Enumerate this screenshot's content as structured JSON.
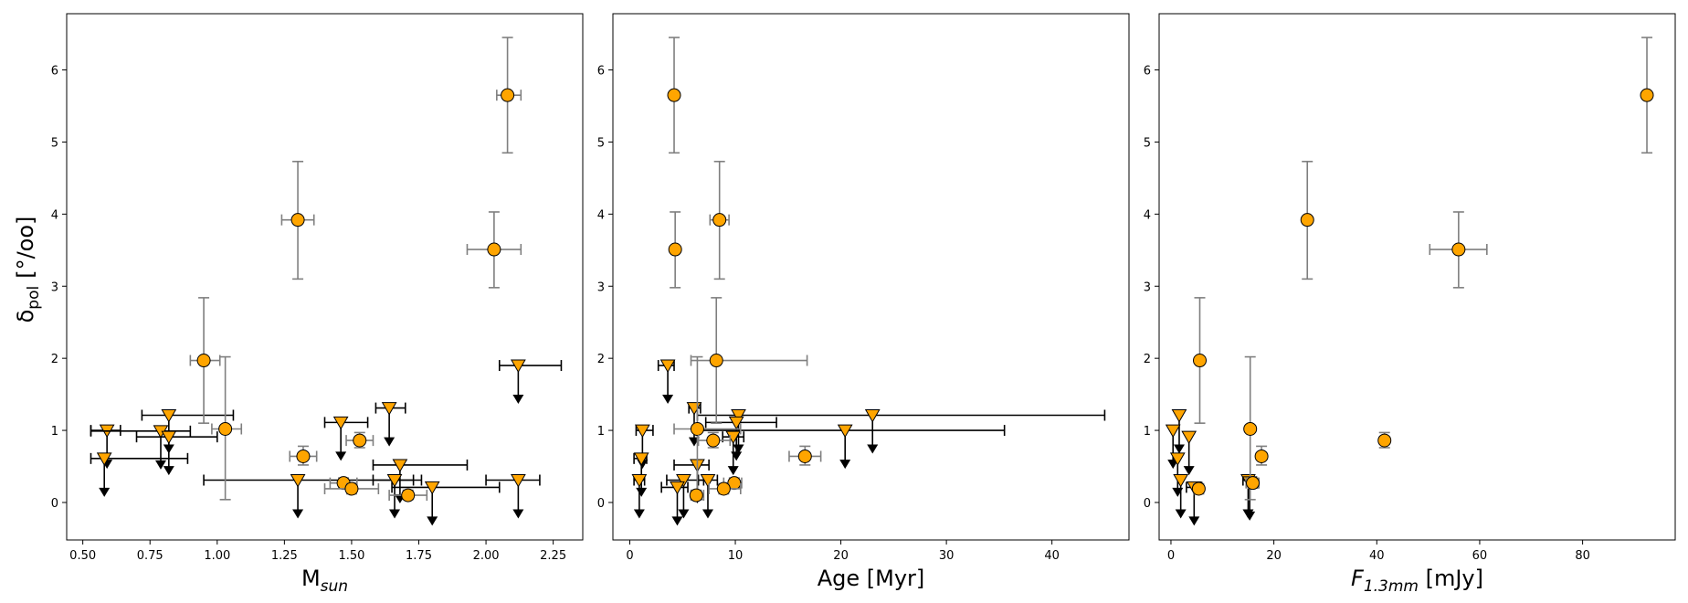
{
  "figure": {
    "ylabel_main": "δ",
    "ylabel_sub": "pol",
    "ylabel_unit": "[°/oo]",
    "colors": {
      "marker": "#ffa500",
      "edge": "#000000",
      "err_detect": "#7f7f7f",
      "err_limit": "#000000"
    }
  },
  "chart_data": [
    {
      "type": "scatter",
      "name": "panel-mass",
      "xlabel_main": "M",
      "xlabel_sub": "sun",
      "xlabel_unit": "",
      "xlim": [
        0.44,
        2.36
      ],
      "ylim": [
        -0.52,
        6.78
      ],
      "xticks": [
        0.5,
        0.75,
        1.0,
        1.25,
        1.5,
        1.75,
        2.0,
        2.25
      ],
      "xtick_labels": [
        "0.50",
        "0.75",
        "1.00",
        "1.25",
        "1.50",
        "1.75",
        "2.00",
        "2.25"
      ],
      "yticks": [
        0,
        1,
        2,
        3,
        4,
        5,
        6
      ],
      "ytick_labels": [
        "0",
        "1",
        "2",
        "3",
        "4",
        "5",
        "6"
      ],
      "detections": [
        {
          "x": 2.08,
          "xlo": 2.04,
          "xhi": 2.13,
          "y": 5.65,
          "ylo": 4.85,
          "yhi": 6.45
        },
        {
          "x": 1.3,
          "xlo": 1.24,
          "xhi": 1.36,
          "y": 3.92,
          "ylo": 3.1,
          "yhi": 4.73
        },
        {
          "x": 2.03,
          "xlo": 1.93,
          "xhi": 2.13,
          "y": 3.51,
          "ylo": 2.98,
          "yhi": 4.03
        },
        {
          "x": 0.95,
          "xlo": 0.9,
          "xhi": 1.01,
          "y": 1.97,
          "ylo": 1.1,
          "yhi": 2.84
        },
        {
          "x": 1.03,
          "xlo": 0.98,
          "xhi": 1.09,
          "y": 1.02,
          "ylo": 0.04,
          "yhi": 2.02
        },
        {
          "x": 1.32,
          "xlo": 1.27,
          "xhi": 1.37,
          "y": 0.64,
          "ylo": 0.52,
          "yhi": 0.78
        },
        {
          "x": 1.53,
          "xlo": 1.48,
          "xhi": 1.58,
          "y": 0.86,
          "ylo": 0.76,
          "yhi": 0.97
        },
        {
          "x": 1.47,
          "xlo": 1.42,
          "xhi": 1.52,
          "y": 0.27,
          "ylo": 0.2,
          "yhi": 0.34
        },
        {
          "x": 1.5,
          "xlo": 1.4,
          "xhi": 1.6,
          "y": 0.19,
          "ylo": 0.12,
          "yhi": 0.26
        },
        {
          "x": 1.71,
          "xlo": 1.64,
          "xhi": 1.78,
          "y": 0.1,
          "ylo": 0.04,
          "yhi": 0.17
        }
      ],
      "limits": [
        {
          "x": 0.59,
          "xlo": 0.53,
          "xhi": 0.64,
          "y": 1.0
        },
        {
          "x": 0.58,
          "xlo": 0.53,
          "xhi": 0.89,
          "y": 0.61
        },
        {
          "x": 0.82,
          "xlo": 0.72,
          "xhi": 1.06,
          "y": 1.21
        },
        {
          "x": 0.79,
          "xlo": 0.53,
          "xhi": 0.9,
          "y": 0.99
        },
        {
          "x": 0.82,
          "xlo": 0.7,
          "xhi": 1.0,
          "y": 0.91
        },
        {
          "x": 1.3,
          "xlo": 0.95,
          "xhi": 1.73,
          "y": 0.31
        },
        {
          "x": 1.46,
          "xlo": 1.4,
          "xhi": 1.56,
          "y": 1.11
        },
        {
          "x": 1.64,
          "xlo": 1.59,
          "xhi": 1.7,
          "y": 1.31
        },
        {
          "x": 1.68,
          "xlo": 1.58,
          "xhi": 1.93,
          "y": 0.52
        },
        {
          "x": 1.66,
          "xlo": 1.58,
          "xhi": 1.76,
          "y": 0.31
        },
        {
          "x": 1.8,
          "xlo": 1.65,
          "xhi": 2.05,
          "y": 0.21
        },
        {
          "x": 2.12,
          "xlo": 2.05,
          "xhi": 2.28,
          "y": 1.9
        },
        {
          "x": 2.12,
          "xlo": 2.0,
          "xhi": 2.2,
          "y": 0.31
        }
      ]
    },
    {
      "type": "scatter",
      "name": "panel-age",
      "xlabel_main": "Age [Myr]",
      "xlabel_sub": "",
      "xlabel_unit": "",
      "xlim": [
        -1.6,
        47.3
      ],
      "ylim": [
        -0.52,
        6.78
      ],
      "xticks": [
        0,
        10,
        20,
        30,
        40
      ],
      "xtick_labels": [
        "0",
        "10",
        "20",
        "30",
        "40"
      ],
      "yticks": [
        0,
        1,
        2,
        3,
        4,
        5,
        6
      ],
      "ytick_labels": [
        "0",
        "1",
        "2",
        "3",
        "4",
        "5",
        "6"
      ],
      "detections": [
        {
          "x": 4.2,
          "xlo": 4.2,
          "xhi": 4.2,
          "y": 5.65,
          "ylo": 4.85,
          "yhi": 6.45
        },
        {
          "x": 8.5,
          "xlo": 7.6,
          "xhi": 9.4,
          "y": 3.92,
          "ylo": 3.1,
          "yhi": 4.73
        },
        {
          "x": 4.3,
          "xlo": 4.3,
          "xhi": 4.3,
          "y": 3.51,
          "ylo": 2.98,
          "yhi": 4.03
        },
        {
          "x": 8.2,
          "xlo": 5.8,
          "xhi": 16.8,
          "y": 1.97,
          "ylo": 1.1,
          "yhi": 2.84
        },
        {
          "x": 6.4,
          "xlo": 4.2,
          "xhi": 10.5,
          "y": 1.02,
          "ylo": 0.04,
          "yhi": 2.02
        },
        {
          "x": 16.6,
          "xlo": 15.1,
          "xhi": 18.1,
          "y": 0.64,
          "ylo": 0.52,
          "yhi": 0.78
        },
        {
          "x": 7.9,
          "xlo": 6.5,
          "xhi": 9.5,
          "y": 0.86,
          "ylo": 0.76,
          "yhi": 0.97
        },
        {
          "x": 9.9,
          "xlo": 8.9,
          "xhi": 10.6,
          "y": 0.27,
          "ylo": 0.2,
          "yhi": 0.34
        },
        {
          "x": 8.9,
          "xlo": 7.5,
          "xhi": 10.5,
          "y": 0.19,
          "ylo": 0.12,
          "yhi": 0.26
        },
        {
          "x": 6.3,
          "xlo": 5.8,
          "xhi": 7.0,
          "y": 0.1,
          "ylo": 0.04,
          "yhi": 0.17
        }
      ],
      "limits": [
        {
          "x": 3.6,
          "xlo": 2.7,
          "xhi": 4.2,
          "y": 1.9
        },
        {
          "x": 6.1,
          "xlo": 5.6,
          "xhi": 6.7,
          "y": 1.31
        },
        {
          "x": 10.3,
          "xlo": 6.4,
          "xhi": 45.0,
          "y": 1.21
        },
        {
          "x": 10.1,
          "xlo": 7.2,
          "xhi": 13.9,
          "y": 1.11
        },
        {
          "x": 1.2,
          "xlo": 0.6,
          "xhi": 2.2,
          "y": 1.0
        },
        {
          "x": 20.4,
          "xlo": 6.3,
          "xhi": 35.5,
          "y": 1.0
        },
        {
          "x": 23.0,
          "xlo": 23.0,
          "xhi": 23.0,
          "y": 1.21
        },
        {
          "x": 9.8,
          "xlo": 8.8,
          "xhi": 10.8,
          "y": 0.91
        },
        {
          "x": 1.1,
          "xlo": 0.4,
          "xhi": 1.6,
          "y": 0.61
        },
        {
          "x": 6.4,
          "xlo": 4.2,
          "xhi": 7.5,
          "y": 0.52
        },
        {
          "x": 0.9,
          "xlo": 0.4,
          "xhi": 1.4,
          "y": 0.31
        },
        {
          "x": 5.1,
          "xlo": 3.5,
          "xhi": 7.0,
          "y": 0.31
        },
        {
          "x": 7.4,
          "xlo": 6.5,
          "xhi": 8.3,
          "y": 0.31
        },
        {
          "x": 4.5,
          "xlo": 3.0,
          "xhi": 5.5,
          "y": 0.21
        }
      ]
    },
    {
      "type": "scatter",
      "name": "panel-flux",
      "xlabel_main": "F",
      "xlabel_sub": "1.3mm",
      "xlabel_unit": " [mJy]",
      "xlim": [
        -2.3,
        98.0
      ],
      "ylim": [
        -0.52,
        6.78
      ],
      "xticks": [
        0,
        20,
        40,
        60,
        80
      ],
      "xtick_labels": [
        "0",
        "20",
        "40",
        "60",
        "80"
      ],
      "yticks": [
        0,
        1,
        2,
        3,
        4,
        5,
        6
      ],
      "ytick_labels": [
        "0",
        "1",
        "2",
        "3",
        "4",
        "5",
        "6"
      ],
      "detections": [
        {
          "x": 92.5,
          "xlo": 92.5,
          "xhi": 92.5,
          "y": 5.65,
          "ylo": 4.85,
          "yhi": 6.45
        },
        {
          "x": 26.5,
          "xlo": 26.5,
          "xhi": 26.5,
          "y": 3.92,
          "ylo": 3.1,
          "yhi": 4.73
        },
        {
          "x": 55.9,
          "xlo": 50.3,
          "xhi": 61.4,
          "y": 3.51,
          "ylo": 2.98,
          "yhi": 4.03
        },
        {
          "x": 5.6,
          "xlo": 5.6,
          "xhi": 5.6,
          "y": 1.97,
          "ylo": 1.1,
          "yhi": 2.84
        },
        {
          "x": 15.4,
          "xlo": 15.4,
          "xhi": 15.4,
          "y": 1.02,
          "ylo": 0.04,
          "yhi": 2.02
        },
        {
          "x": 17.6,
          "xlo": 17.6,
          "xhi": 17.6,
          "y": 0.64,
          "ylo": 0.52,
          "yhi": 0.78
        },
        {
          "x": 41.5,
          "xlo": 41.5,
          "xhi": 41.5,
          "y": 0.86,
          "ylo": 0.76,
          "yhi": 0.97
        },
        {
          "x": 15.9,
          "xlo": 14.6,
          "xhi": 17.1,
          "y": 0.27,
          "ylo": 0.2,
          "yhi": 0.34
        },
        {
          "x": 5.4,
          "xlo": 4.4,
          "xhi": 6.3,
          "y": 0.19,
          "ylo": 0.12,
          "yhi": 0.26
        }
      ],
      "limits": [
        {
          "x": 1.6,
          "xlo": 1.6,
          "xhi": 1.6,
          "y": 1.21
        },
        {
          "x": 0.4,
          "xlo": 0.4,
          "xhi": 0.4,
          "y": 1.0
        },
        {
          "x": 3.5,
          "xlo": 3.5,
          "xhi": 3.5,
          "y": 0.91
        },
        {
          "x": 1.3,
          "xlo": 1.3,
          "xhi": 1.3,
          "y": 0.61
        },
        {
          "x": 1.9,
          "xlo": 1.9,
          "xhi": 1.9,
          "y": 0.31
        },
        {
          "x": 15.0,
          "xlo": 14.0,
          "xhi": 16.0,
          "y": 0.31
        },
        {
          "x": 4.5,
          "xlo": 3.0,
          "xhi": 6.0,
          "y": 0.21
        },
        {
          "x": 15.3,
          "xlo": 15.3,
          "xhi": 15.3,
          "y": 0.28
        }
      ]
    }
  ]
}
